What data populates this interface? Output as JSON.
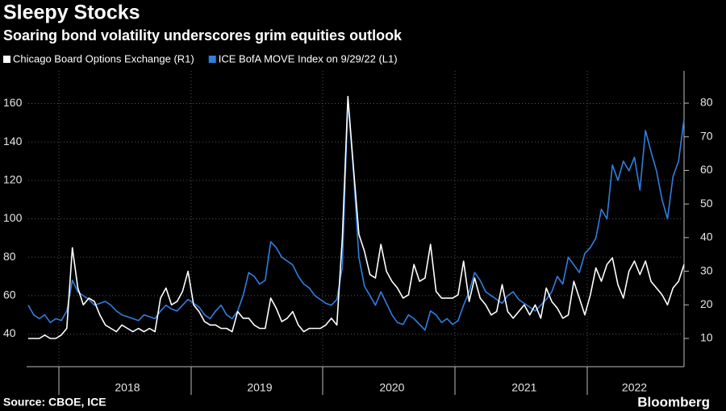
{
  "chart_data": {
    "type": "line",
    "title": "Sleepy Stocks",
    "subtitle": "Soaring bond volatility underscores grim equities outlook",
    "source": "Source: CBOE, ICE",
    "brand": "Bloomberg",
    "categories": [
      null,
      null,
      null,
      null,
      null,
      null,
      null,
      null,
      null,
      null,
      null,
      null,
      null,
      null,
      null,
      null,
      null,
      null,
      "2018",
      null,
      null,
      null,
      null,
      null,
      null,
      null,
      null,
      null,
      null,
      null,
      null,
      null,
      null,
      null,
      null,
      null,
      null,
      null,
      null,
      null,
      null,
      null,
      "2019",
      null,
      null,
      null,
      null,
      null,
      null,
      null,
      null,
      null,
      null,
      null,
      null,
      null,
      null,
      null,
      null,
      null,
      null,
      null,
      null,
      null,
      null,
      null,
      "2020",
      null,
      null,
      null,
      null,
      null,
      null,
      null,
      null,
      null,
      null,
      null,
      null,
      null,
      null,
      null,
      null,
      null,
      null,
      null,
      null,
      null,
      null,
      null,
      "2021",
      null,
      null,
      null,
      null,
      null,
      null,
      null,
      null,
      null,
      null,
      null,
      null,
      null,
      null,
      null,
      null,
      null,
      null,
      null,
      "2022",
      null,
      null,
      null,
      null,
      null,
      null,
      null,
      null,
      null
    ],
    "series": [
      {
        "name": "Chicago Board Options Exchange (R1)",
        "color": "#ffffff",
        "axis": "y2",
        "values": [
          10,
          10,
          10,
          11,
          10,
          10,
          11,
          13,
          37,
          25,
          20,
          22,
          21,
          17,
          14,
          13,
          12,
          14,
          13,
          12,
          13,
          12,
          13,
          12,
          22,
          25,
          20,
          21,
          24,
          30,
          20,
          18,
          15,
          14,
          14,
          13,
          13,
          12,
          18,
          16,
          16,
          14,
          13,
          13,
          22,
          19,
          15,
          16,
          18,
          14,
          12,
          13,
          13,
          13,
          14,
          16,
          14,
          40,
          82,
          61,
          41,
          36,
          29,
          28,
          38,
          30,
          27,
          25,
          22,
          23,
          32,
          27,
          28,
          38,
          24,
          22,
          22,
          22,
          23,
          33,
          21,
          28,
          22,
          20,
          17,
          18,
          26,
          18,
          16,
          18,
          20,
          17,
          20,
          16,
          25,
          21,
          19,
          16,
          17,
          27,
          22,
          17,
          23,
          31,
          27,
          32,
          34,
          26,
          22,
          30,
          33,
          29,
          33,
          27,
          25,
          23,
          20,
          25,
          27,
          32
        ]
      },
      {
        "name": "ICE BofA MOVE Index on 9/29/22 (L1)",
        "color": "#2f7fe0",
        "values": [
          55,
          50,
          48,
          50,
          46,
          48,
          47,
          52,
          68,
          62,
          60,
          58,
          55,
          56,
          57,
          55,
          52,
          50,
          49,
          48,
          47,
          50,
          49,
          48,
          52,
          55,
          53,
          52,
          55,
          58,
          56,
          54,
          50,
          48,
          52,
          55,
          50,
          48,
          52,
          60,
          72,
          70,
          66,
          68,
          88,
          85,
          80,
          78,
          76,
          70,
          66,
          64,
          60,
          58,
          56,
          55,
          58,
          75,
          162,
          125,
          80,
          65,
          60,
          55,
          62,
          56,
          50,
          46,
          45,
          50,
          48,
          45,
          42,
          52,
          50,
          46,
          48,
          45,
          47,
          55,
          62,
          72,
          68,
          62,
          60,
          58,
          56,
          60,
          62,
          58,
          56,
          54,
          52,
          55,
          58,
          62,
          70,
          66,
          80,
          76,
          72,
          82,
          85,
          90,
          105,
          100,
          128,
          120,
          130,
          125,
          132,
          115,
          146,
          135,
          125,
          110,
          100,
          122,
          130,
          152
        ]
      }
    ],
    "ylim": [
      23,
      177
    ],
    "yticks": [
      40,
      60,
      80,
      100,
      120,
      140,
      160
    ],
    "y2lim": [
      1.6,
      89.6
    ],
    "y2ticks": [
      10,
      20,
      30,
      40,
      50,
      60,
      70,
      80
    ],
    "grid": true
  }
}
